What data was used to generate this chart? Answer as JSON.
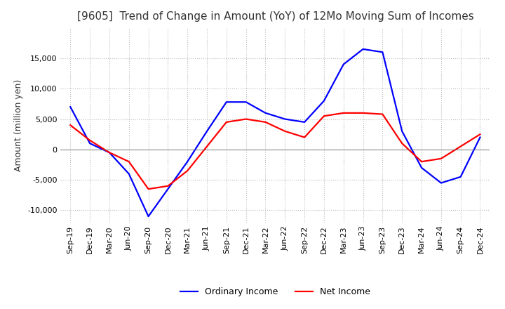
{
  "title": "[9605]  Trend of Change in Amount (YoY) of 12Mo Moving Sum of Incomes",
  "ylabel": "Amount (million yen)",
  "x_labels": [
    "Sep-19",
    "Dec-19",
    "Mar-20",
    "Jun-20",
    "Sep-20",
    "Dec-20",
    "Mar-21",
    "Jun-21",
    "Sep-21",
    "Dec-21",
    "Mar-22",
    "Jun-22",
    "Sep-22",
    "Dec-22",
    "Mar-23",
    "Jun-23",
    "Sep-23",
    "Dec-23",
    "Mar-24",
    "Jun-24",
    "Sep-24",
    "Dec-24"
  ],
  "ordinary_income": [
    7000,
    1000,
    -500,
    -4000,
    -11000,
    -6500,
    -2000,
    3000,
    7800,
    7800,
    6000,
    5000,
    4500,
    8000,
    14000,
    16500,
    16000,
    3000,
    -3000,
    -5500,
    -4500,
    2000
  ],
  "net_income": [
    4000,
    1500,
    -500,
    -2000,
    -6500,
    -6000,
    -3500,
    500,
    4500,
    5000,
    4500,
    3000,
    2000,
    5500,
    6000,
    6000,
    5800,
    1000,
    -2000,
    -1500,
    500,
    2500
  ],
  "ordinary_color": "#0000ff",
  "net_color": "#ff0000",
  "ylim": [
    -12000,
    20000
  ],
  "yticks": [
    -10000,
    -5000,
    0,
    5000,
    10000,
    15000
  ],
  "grid_color": "#bbbbbb",
  "background_color": "#ffffff",
  "title_fontsize": 11,
  "label_fontsize": 8,
  "legend_labels": [
    "Ordinary Income",
    "Net Income"
  ]
}
